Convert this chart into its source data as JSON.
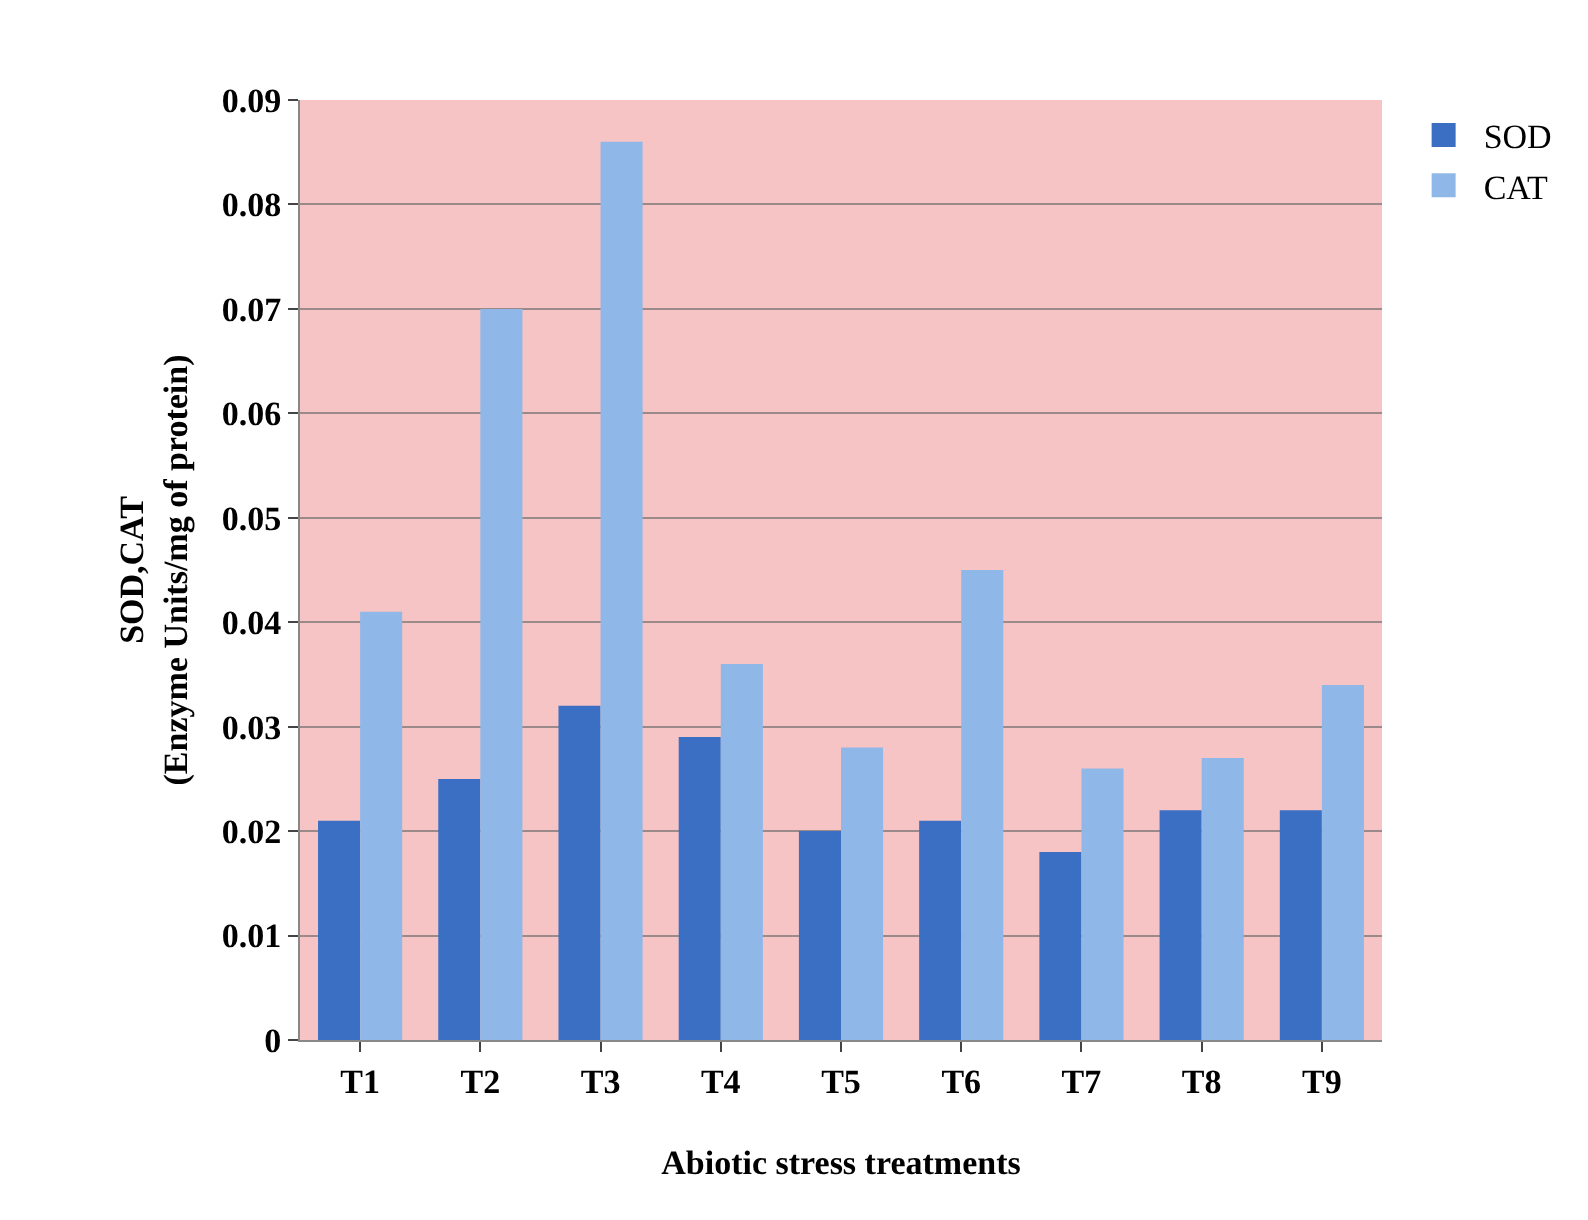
{
  "chart_data": {
    "type": "bar",
    "xlabel": "Abiotic stress treatments",
    "ylabel": "SOD,CAT\n(Enzyme Units/mg of protein)",
    "categories": [
      "T1",
      "T2",
      "T3",
      "T4",
      "T5",
      "T6",
      "T7",
      "T8",
      "T9"
    ],
    "series": [
      {
        "name": "SOD",
        "color": "#3a6fc4",
        "values": [
          0.021,
          0.025,
          0.032,
          0.029,
          0.02,
          0.021,
          0.018,
          0.022,
          0.022
        ]
      },
      {
        "name": "CAT",
        "color": "#8fb8e8",
        "values": [
          0.041,
          0.07,
          0.086,
          0.036,
          0.028,
          0.045,
          0.026,
          0.027,
          0.034
        ]
      }
    ],
    "ylim": [
      0,
      0.09
    ],
    "yticks": [
      0,
      0.01,
      0.02,
      0.03,
      0.04,
      0.05,
      0.06,
      0.07,
      0.08,
      0.09
    ],
    "grid": "y",
    "legend": "top right"
  }
}
